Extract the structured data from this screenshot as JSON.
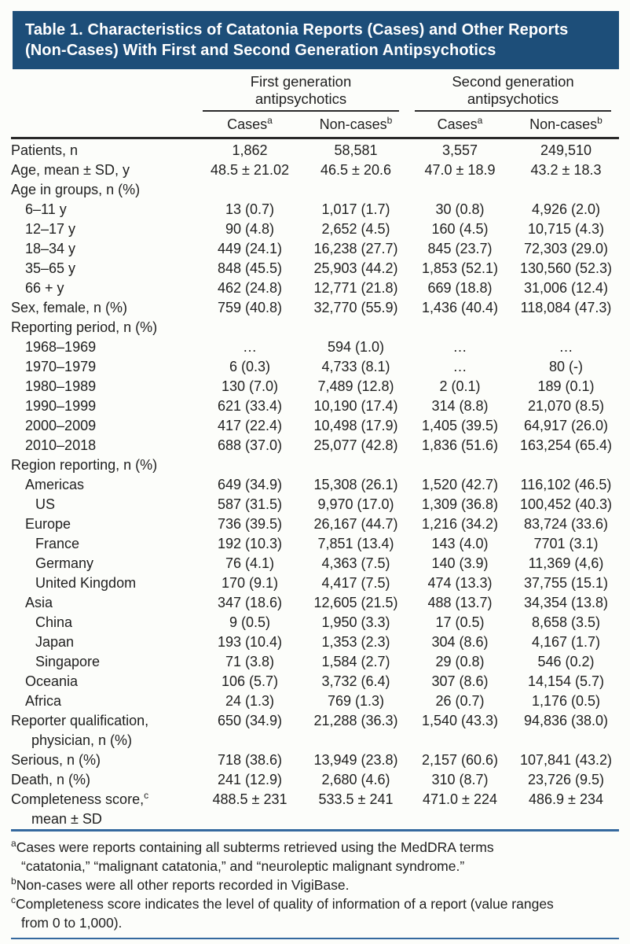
{
  "title_lines": [
    "Table 1. Characteristics of Catatonia Reports (Cases) and Other Reports",
    "(Non-Cases) With First and Second Generation Antipsychotics"
  ],
  "colors": {
    "header_bg": "#1d4e79",
    "rule_dark": "#2a2a2a",
    "rule_blue": "#35699e",
    "text": "#1f1f1f"
  },
  "header": {
    "groups": [
      {
        "line1": "First generation",
        "line2": "antipsychotics"
      },
      {
        "line1": "Second generation",
        "line2": "antipsychotics"
      }
    ],
    "subcols": [
      {
        "label": "Cases",
        "sup": "a"
      },
      {
        "label": "Non-cases",
        "sup": "b"
      },
      {
        "label": "Cases",
        "sup": "a"
      },
      {
        "label": "Non-cases",
        "sup": "b"
      }
    ]
  },
  "table": {
    "rows": [
      {
        "label": "Patients, n",
        "indent": 0,
        "values": [
          "1,862",
          "58,581",
          "3,557",
          "249,510"
        ]
      },
      {
        "label": "Age, mean ± SD, y",
        "indent": 0,
        "values": [
          "48.5 ± 21.02",
          "46.5 ± 20.6",
          "47.0 ± 18.9",
          "43.2 ± 18.3"
        ]
      },
      {
        "label": "Age in groups, n (%)",
        "indent": 0,
        "values": [
          "",
          "",
          "",
          ""
        ]
      },
      {
        "label": "6–11 y",
        "indent": 1,
        "values": [
          "13 (0.7)",
          "1,017 (1.7)",
          "30 (0.8)",
          "4,926 (2.0)"
        ]
      },
      {
        "label": "12–17 y",
        "indent": 1,
        "values": [
          "90 (4.8)",
          "2,652 (4.5)",
          "160 (4.5)",
          "10,715 (4.3)"
        ]
      },
      {
        "label": "18–34 y",
        "indent": 1,
        "values": [
          "449 (24.1)",
          "16,238 (27.7)",
          "845 (23.7)",
          "72,303 (29.0)"
        ]
      },
      {
        "label": "35–65 y",
        "indent": 1,
        "values": [
          "848 (45.5)",
          "25,903 (44.2)",
          "1,853 (52.1)",
          "130,560 (52.3)"
        ]
      },
      {
        "label": "66 + y",
        "indent": 1,
        "values": [
          "462 (24.8)",
          "12,771 (21.8)",
          "669 (18.8)",
          "31,006 (12.4)"
        ]
      },
      {
        "label": "Sex, female, n (%)",
        "indent": 0,
        "values": [
          "759 (40.8)",
          "32,770 (55.9)",
          "1,436 (40.4)",
          "118,084 (47.3)"
        ]
      },
      {
        "label": "Reporting period, n (%)",
        "indent": 0,
        "values": [
          "",
          "",
          "",
          ""
        ]
      },
      {
        "label": "1968–1969",
        "indent": 1,
        "values": [
          "…",
          "594 (1.0)",
          "…",
          "…"
        ]
      },
      {
        "label": "1970–1979",
        "indent": 1,
        "values": [
          "6 (0.3)",
          "4,733 (8.1)",
          "…",
          "80 (-)"
        ]
      },
      {
        "label": "1980–1989",
        "indent": 1,
        "values": [
          "130 (7.0)",
          "7,489 (12.8)",
          "2 (0.1)",
          "189 (0.1)"
        ]
      },
      {
        "label": "1990–1999",
        "indent": 1,
        "values": [
          "621 (33.4)",
          "10,190 (17.4)",
          "314 (8.8)",
          "21,070 (8.5)"
        ]
      },
      {
        "label": "2000–2009",
        "indent": 1,
        "values": [
          "417 (22.4)",
          "10,498 (17.9)",
          "1,405 (39.5)",
          "64,917 (26.0)"
        ]
      },
      {
        "label": "2010–2018",
        "indent": 1,
        "values": [
          "688 (37.0)",
          "25,077 (42.8)",
          "1,836 (51.6)",
          "163,254 (65.4)"
        ]
      },
      {
        "label": "Region reporting, n (%)",
        "indent": 0,
        "values": [
          "",
          "",
          "",
          ""
        ]
      },
      {
        "label": "Americas",
        "indent": 1,
        "values": [
          "649 (34.9)",
          "15,308 (26.1)",
          "1,520 (42.7)",
          "116,102 (46.5)"
        ]
      },
      {
        "label": "US",
        "indent": 2,
        "values": [
          "587 (31.5)",
          "9,970 (17.0)",
          "1,309 (36.8)",
          "100,452 (40.3)"
        ]
      },
      {
        "label": "Europe",
        "indent": 1,
        "values": [
          "736 (39.5)",
          "26,167 (44.7)",
          "1,216 (34.2)",
          "83,724 (33.6)"
        ]
      },
      {
        "label": "France",
        "indent": 2,
        "values": [
          "192 (10.3)",
          "7,851 (13.4)",
          "143 (4.0)",
          "7701 (3.1)"
        ]
      },
      {
        "label": "Germany",
        "indent": 2,
        "values": [
          "76 (4.1)",
          "4,363 (7.5)",
          "140 (3.9)",
          "11,369 (4,6)"
        ]
      },
      {
        "label": "United Kingdom",
        "indent": 2,
        "values": [
          "170 (9.1)",
          "4,417 (7.5)",
          "474 (13.3)",
          "37,755 (15.1)"
        ]
      },
      {
        "label": "Asia",
        "indent": 1,
        "values": [
          "347 (18.6)",
          "12,605 (21.5)",
          "488 (13.7)",
          "34,354 (13.8)"
        ]
      },
      {
        "label": "China",
        "indent": 2,
        "values": [
          "9 (0.5)",
          "1,950 (3.3)",
          "17 (0.5)",
          "8,658 (3.5)"
        ]
      },
      {
        "label": "Japan",
        "indent": 2,
        "values": [
          "193 (10.4)",
          "1,353 (2.3)",
          "304 (8.6)",
          "4,167 (1.7)"
        ]
      },
      {
        "label": "Singapore",
        "indent": 2,
        "values": [
          "71 (3.8)",
          "1,584 (2.7)",
          "29 (0.8)",
          "546 (0.2)"
        ]
      },
      {
        "label": "Oceania",
        "indent": 1,
        "values": [
          "106 (5.7)",
          "3,732 (6.4)",
          "307 (8.6)",
          "14,154 (5.7)"
        ]
      },
      {
        "label": "Africa",
        "indent": 1,
        "values": [
          "24 (1.3)",
          "769 (1.3)",
          "26 (0.7)",
          "1,176 (0.5)"
        ]
      },
      {
        "label": "Reporter qualification,",
        "label2": "physician, n (%)",
        "indent": 0,
        "values": [
          "650 (34.9)",
          "21,288 (36.3)",
          "1,540 (43.3)",
          "94,836 (38.0)"
        ]
      },
      {
        "label": "Serious, n (%)",
        "indent": 0,
        "values": [
          "718 (38.6)",
          "13,949 (23.8)",
          "2,157 (60.6)",
          "107,841 (43.2)"
        ]
      },
      {
        "label": "Death, n (%)",
        "indent": 0,
        "values": [
          "241 (12.9)",
          "2,680 (4.6)",
          "310 (8.7)",
          "23,726 (9.5)"
        ]
      },
      {
        "label": "Completeness score,",
        "sup": "c",
        "label2": "mean ± SD",
        "indent": 0,
        "values": [
          "488.5 ± 231",
          "533.5 ± 241",
          "471.0 ± 224",
          "486.9 ± 234"
        ]
      }
    ]
  },
  "footnotes": [
    {
      "sup": "a",
      "lines": [
        "Cases were reports containing all subterms retrieved using the MedDRA terms",
        "“catatonia,” “malignant catatonia,” and “neuroleptic malignant syndrome.”"
      ]
    },
    {
      "sup": "b",
      "lines": [
        "Non-cases were all other reports recorded in VigiBase."
      ]
    },
    {
      "sup": "c",
      "lines": [
        "Completeness score indicates the level of quality of information of a report (value ranges",
        "from 0 to 1,000)."
      ]
    }
  ]
}
